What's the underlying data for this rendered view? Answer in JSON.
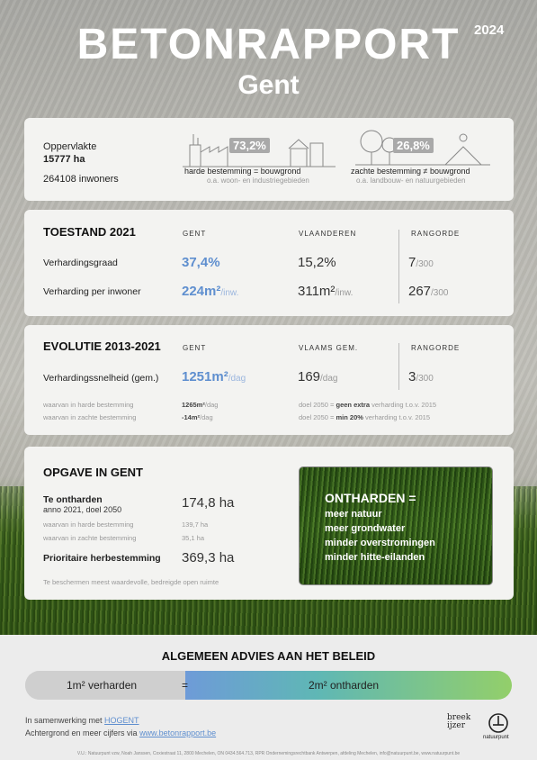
{
  "header": {
    "title": "BETONRAPPORT",
    "year": "2024",
    "city": "Gent"
  },
  "overview": {
    "area_label": "Oppervlakte",
    "area_value": "15777 ha",
    "inhabitants": "264108 inwoners",
    "hard": {
      "pct": "73,2%",
      "label": "harde bestemming = bouwgrond",
      "sub": "o.a. woon- en industriegebieden"
    },
    "soft": {
      "pct": "26,8%",
      "label": "zachte bestemming ≠ bouwgrond",
      "sub": "o.a. landbouw- en natuurgebieden"
    }
  },
  "state": {
    "title": "TOESTAND 2021",
    "col_gent": "GENT",
    "col_vl": "VLAANDEREN",
    "col_rank": "RANGORDE",
    "rows": [
      {
        "label": "Verhardingsgraad",
        "gent": "37,4%",
        "gent_unit": "",
        "vl": "15,2%",
        "vl_unit": "",
        "rank": "7",
        "rank_unit": "/300"
      },
      {
        "label": "Verharding per inwoner",
        "gent": "224m²",
        "gent_unit": "/inw.",
        "vl": "311m²",
        "vl_unit": "/inw.",
        "rank": "267",
        "rank_unit": "/300"
      }
    ]
  },
  "evolution": {
    "title": "EVOLUTIE 2013-2021",
    "col_gent": "GENT",
    "col_vl": "VLAAMS GEM.",
    "col_rank": "RANGORDE",
    "label": "Verhardingssnelheid (gem.)",
    "gent": "1251m²",
    "gent_unit": "/dag",
    "vl": "169",
    "vl_unit": "/dag",
    "rank": "3",
    "rank_unit": "/300",
    "sub1_label": "waarvan in harde bestemming",
    "sub1_value": "1265m²",
    "sub1_unit": "/dag",
    "sub2_label": "waarvan in zachte bestemming",
    "sub2_value": "-14m²",
    "sub2_unit": "/dag",
    "goal1_a": "doel 2050 = ",
    "goal1_b": "geen extra",
    "goal1_c": " verharding t.o.v. 2015",
    "goal2_a": "doel 2050 = ",
    "goal2_b": "min 20%",
    "goal2_c": " verharding t.o.v. 2015"
  },
  "task": {
    "title": "OPGAVE IN GENT",
    "unpave_label": "Te ontharden",
    "unpave_sub": "anno 2021, doel 2050",
    "unpave_value": "174,8 ha",
    "hard_label": "waarvan in harde bestemming",
    "hard_value": "139,7 ha",
    "soft_label": "waarvan in zachte bestemming",
    "soft_value": "35,1 ha",
    "priority_label": "Prioritaire herbestemming",
    "priority_value": "369,3 ha",
    "note": "Te beschermen meest waardevolle, bedreigde open ruimte",
    "box_title": "ONTHARDEN =",
    "box_items": [
      "meer natuur",
      "meer grondwater",
      "minder overstromingen",
      "minder hitte-eilanden"
    ]
  },
  "advice": {
    "title": "ALGEMEEN ADVIES AAN HET BELEID",
    "left": "1m² verharden",
    "eq": "=",
    "right": "2m² ontharden"
  },
  "footer": {
    "collab": "In samenwerking met ",
    "collab_link": "HOGENT",
    "more": "Achtergrond en meer cijfers via ",
    "more_link": "www.betonrapport.be",
    "logo1": "breek ijzer",
    "logo2": "natuurpunt",
    "vu": "V.U.: Natuurpunt vzw, Noah Janssen, Coxiestraat 11, 2800 Mechelen, ON 0434.564.713, RPR Ondernemingsrechtbank Antwerpen, afdeling Mechelen, info@natuurpunt.be, www.natuurpunt.be"
  }
}
